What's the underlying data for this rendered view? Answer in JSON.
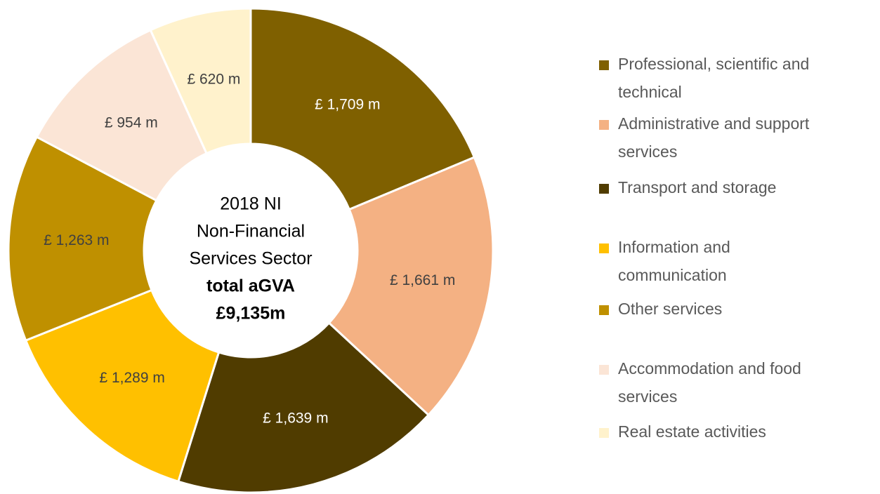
{
  "chart_data": {
    "type": "donut",
    "center_text": [
      "2018 NI",
      "Non-Financial",
      "Services Sector",
      "total aGVA",
      "£9,135m"
    ],
    "center_bold": [
      false,
      false,
      false,
      true,
      true
    ],
    "categories": [
      "Professional, scientific and technical",
      "Administrative and support services",
      "Transport and storage",
      "Information and communication",
      "Other services",
      "Accommodation and food services",
      "Real estate activities"
    ],
    "values": [
      1709,
      1661,
      1639,
      1289,
      1263,
      954,
      620
    ],
    "value_labels": [
      "£ 1,709 m",
      "£ 1,661 m",
      "£ 1,639 m",
      "£ 1,289 m",
      "£ 1,263 m",
      "£ 954 m",
      "£ 620 m"
    ],
    "colors": [
      "#7F6000",
      "#F4B183",
      "#503C00",
      "#FFC000",
      "#BF9000",
      "#FBE5D6",
      "#FFF2CC"
    ],
    "legend": "right"
  }
}
